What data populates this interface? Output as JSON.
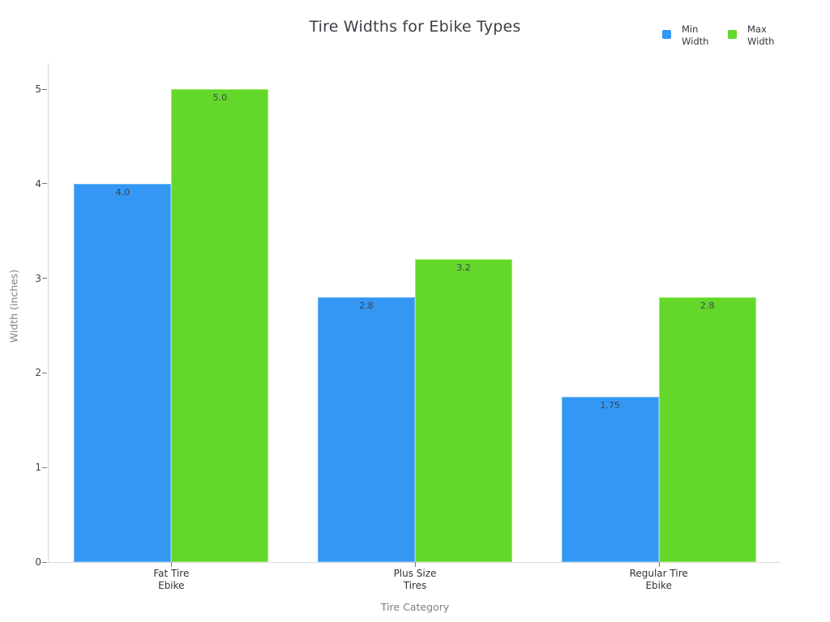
{
  "chart_data": {
    "type": "bar",
    "title": "Tire Widths for Ebike Types",
    "xlabel": "Tire Category",
    "ylabel": "Width (inches)",
    "categories": [
      "Fat Tire Ebike",
      "Plus Size Tires",
      "Regular Tire Ebike"
    ],
    "category_label_lines": [
      [
        "Fat Tire",
        "Ebike"
      ],
      [
        "Plus Size",
        "Tires"
      ],
      [
        "Regular Tire",
        "Ebike"
      ]
    ],
    "series": [
      {
        "name": "Min Width",
        "legend_lines": [
          "Min",
          "Width"
        ],
        "color": "#3397f3",
        "edge_color": "#6db8f8",
        "values": [
          4.0,
          2.8,
          1.75
        ],
        "value_labels": [
          "4.0",
          "2.8",
          "1.75"
        ]
      },
      {
        "name": "Max Width",
        "legend_lines": [
          "Max",
          "Width"
        ],
        "color": "#63d82b",
        "edge_color": "#a2ec66",
        "values": [
          5.0,
          3.2,
          2.8
        ],
        "value_labels": [
          "5.0",
          "3.2",
          "2.8"
        ]
      }
    ],
    "ylim": [
      0,
      5
    ],
    "yticks": [
      "0",
      "1",
      "2",
      "3",
      "4",
      "5"
    ],
    "grid": false,
    "legend_position": "top-right",
    "background": "#ffffff",
    "axis_line_color": "#d9d9d9",
    "tick_color": "#777777"
  }
}
